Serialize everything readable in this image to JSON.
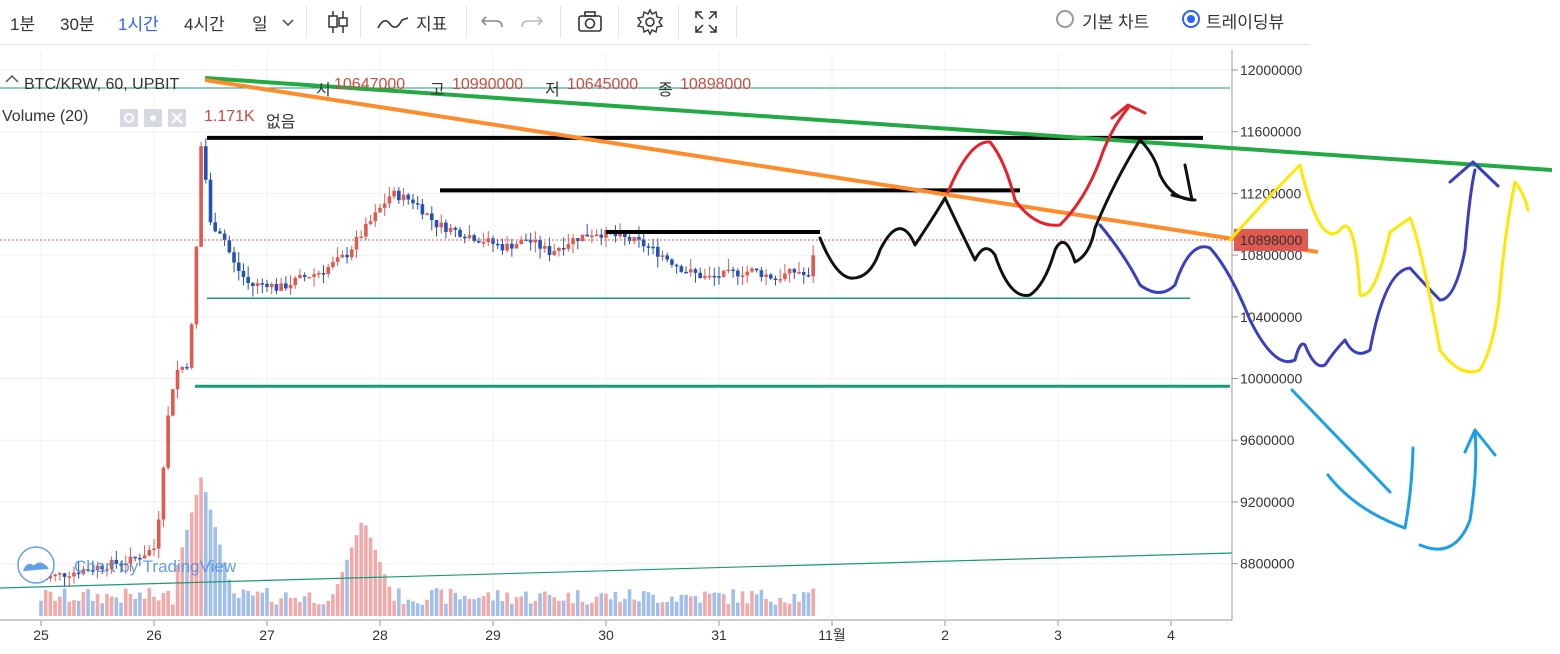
{
  "toolbar": {
    "intervals": [
      "1분",
      "30분",
      "1시간",
      "4시간",
      "일"
    ],
    "active_interval": "1시간",
    "indicator_label": "지표",
    "view_basic": "기본 차트",
    "view_trading": "트레이딩뷰"
  },
  "legend": {
    "symbol": "BTC/KRW, 60, UPBIT",
    "open_label": "시",
    "open": "10647000",
    "high_label": "고",
    "high": "10990000",
    "low_label": "저",
    "low": "10645000",
    "close_label": "종",
    "close": "10898000",
    "volume_label": "Volume (20)",
    "volume_value": "1.171K",
    "volume_extra": "없음"
  },
  "watermark": "Chart by TradingView",
  "colors": {
    "up": "#e05a4f",
    "down": "#2451b8",
    "vol_up": "#ef9a9a",
    "vol_down": "#90b4e8",
    "green_trend": "#22aa44",
    "orange_trend": "#ff8c2a",
    "support": "#1a9b78",
    "price_label_bg": "#e05a4f"
  },
  "chart_data": {
    "type": "candlestick",
    "symbol": "BTC/KRW",
    "interval": "60",
    "exchange": "UPBIT",
    "y_ticks": [
      12000000,
      11600000,
      11200000,
      10800000,
      10400000,
      10000000,
      9600000,
      9200000,
      8800000
    ],
    "y_tick_labels": [
      "12000000",
      "11600000",
      "11200000",
      "10800000",
      "10400000",
      "10000000",
      "9600000",
      "9200000",
      "8800000"
    ],
    "ylim": [
      8600000,
      12050000
    ],
    "x_tick_labels": [
      "25",
      "26",
      "27",
      "28",
      "29",
      "30",
      "31",
      "11월",
      "2",
      "3",
      "4"
    ],
    "current_price": 10898000,
    "current_price_label": "10898000",
    "price_path": [
      [
        25.0,
        8700000
      ],
      [
        25.5,
        8780000
      ],
      [
        25.8,
        8820000
      ],
      [
        26.0,
        8900000
      ],
      [
        26.05,
        9150000
      ],
      [
        26.1,
        9600000
      ],
      [
        26.15,
        9900000
      ],
      [
        26.2,
        10050000
      ],
      [
        26.3,
        10100000
      ],
      [
        26.35,
        10450000
      ],
      [
        26.42,
        11560000
      ],
      [
        26.5,
        11000000
      ],
      [
        26.6,
        10950000
      ],
      [
        26.7,
        10750000
      ],
      [
        26.85,
        10600000
      ],
      [
        27.0,
        10620000
      ],
      [
        27.1,
        10580000
      ],
      [
        27.3,
        10650000
      ],
      [
        27.5,
        10700000
      ],
      [
        27.7,
        10800000
      ],
      [
        27.9,
        11000000
      ],
      [
        28.1,
        11200000
      ],
      [
        28.3,
        11150000
      ],
      [
        28.5,
        11000000
      ],
      [
        28.7,
        10950000
      ],
      [
        28.9,
        10900000
      ],
      [
        29.1,
        10850000
      ],
      [
        29.3,
        10900000
      ],
      [
        29.5,
        10820000
      ],
      [
        29.7,
        10900000
      ],
      [
        29.9,
        10950000
      ],
      [
        30.1,
        10920000
      ],
      [
        30.3,
        10880000
      ],
      [
        30.5,
        10800000
      ],
      [
        30.7,
        10700000
      ],
      [
        30.9,
        10650000
      ],
      [
        31.1,
        10680000
      ],
      [
        31.3,
        10700000
      ],
      [
        31.5,
        10650000
      ],
      [
        31.7,
        10700000
      ],
      [
        31.8,
        10640000
      ],
      [
        31.85,
        10898000
      ]
    ],
    "horizontal_levels": [
      11560000,
      11220000,
      10950000,
      10520000,
      9950000
    ],
    "volume_peaks": [
      [
        26.42,
        1.0
      ],
      [
        27.85,
        0.7
      ],
      [
        31.95,
        0.25
      ]
    ]
  }
}
